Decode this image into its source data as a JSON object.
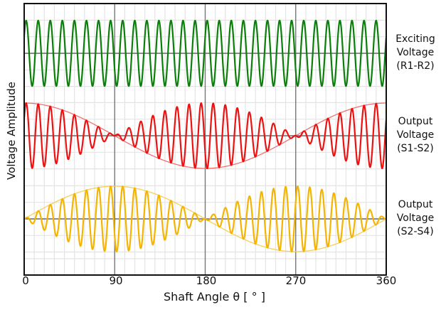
{
  "chart_data": {
    "type": "line",
    "title": "",
    "xlabel": "Shaft Angle θ [ ° ]",
    "ylabel": "Voltage Amplitude",
    "x_ticks": [
      "0",
      "90",
      "180",
      "270",
      "360"
    ],
    "xlim": [
      0,
      360
    ],
    "grid": true,
    "excitation_cycles_per_revolution": 30,
    "series": [
      {
        "name": "Exciting Voltage (R1-R2)",
        "label_lines": [
          "Exciting",
          "Voltage",
          "(R1-R2)"
        ],
        "color": "#0a800a",
        "formula": "sin(30·θ)",
        "envelope": "constant 1"
      },
      {
        "name": "Output Voltage (S1-S2)",
        "label_lines": [
          "Output",
          "Voltage",
          "(S1-S2)"
        ],
        "color": "#ee1111",
        "envelope_color": "#f07070",
        "formula": "cos(θ)·sin(30·θ)",
        "envelope": "cos(θ)"
      },
      {
        "name": "Output Voltage (S2-S4)",
        "label_lines": [
          "Output",
          "Voltage",
          "(S2-S4)"
        ],
        "color": "#f5b400",
        "envelope_color": "#f8cf5a",
        "formula": "sin(θ)·sin(30·θ)",
        "envelope": "sin(θ)"
      }
    ]
  }
}
